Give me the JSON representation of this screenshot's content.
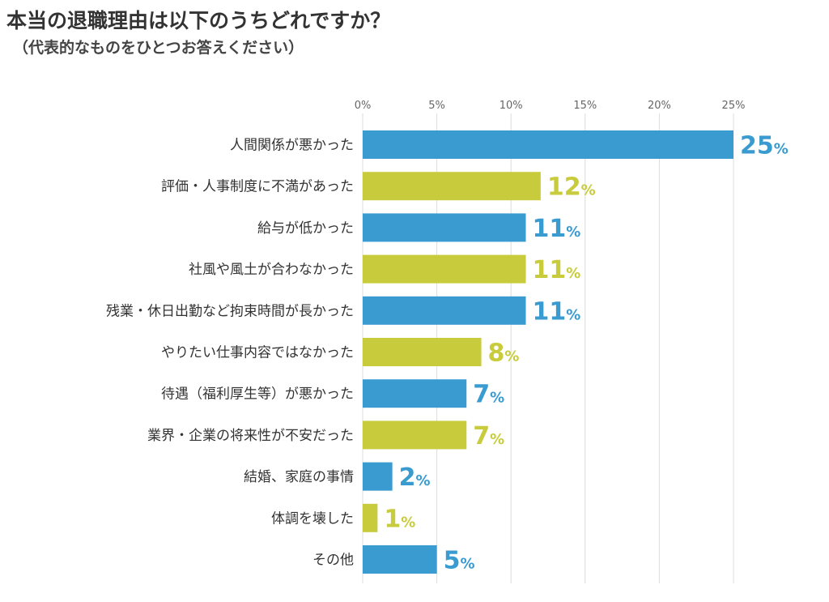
{
  "title": "本当の退職理由は以下のうちどれですか？",
  "subtitle": "（代表的なものをひとつお答えください）",
  "colors": {
    "blue": "#3a9bd0",
    "olive": "#c8cc3c",
    "grid": "#dcdcdc",
    "text": "#333333"
  },
  "chart_data": {
    "type": "bar",
    "orientation": "horizontal",
    "xlim": [
      0,
      25
    ],
    "ticks": [
      "0%",
      "5%",
      "10%",
      "15%",
      "20%",
      "25%"
    ],
    "tick_values": [
      0,
      5,
      10,
      15,
      20,
      25
    ],
    "grid": true,
    "categories": [
      "人間関係が悪かった",
      "評価・人事制度に不満があった",
      "給与が低かった",
      "社風や風土が合わなかった",
      "残業・休日出勤など拘束時間が長かった",
      "やりたい仕事内容ではなかった",
      "待遇（福利厚生等）が悪かった",
      "業界・企業の将来性が不安だった",
      "結婚、家庭の事情",
      "体調を壊した",
      "その他"
    ],
    "values": [
      25,
      12,
      11,
      11,
      11,
      8,
      7,
      7,
      2,
      1,
      5
    ],
    "labels": [
      "25",
      "12",
      "11",
      "11",
      "11",
      "8",
      "7",
      "7",
      "2",
      "1",
      "5"
    ],
    "unit": "%",
    "bar_colors": [
      "blue",
      "olive",
      "blue",
      "olive",
      "blue",
      "olive",
      "blue",
      "olive",
      "blue",
      "olive",
      "blue"
    ]
  }
}
